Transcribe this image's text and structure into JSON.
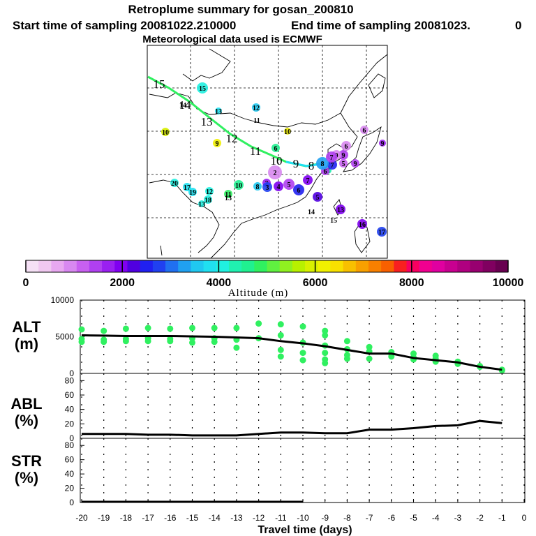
{
  "header": {
    "title": "Retroplume summary for gosan_200810",
    "start_label": "Start time of sampling 20081022.210000",
    "end_label": "End time of sampling 20081023.",
    "end_suffix": "0",
    "met_label": "Meteorological data used is ECMWF"
  },
  "chart_data": [
    {
      "type": "map",
      "title": "Retroplume trajectory map",
      "plume_track_labels": [
        "15",
        "14",
        "13",
        "12",
        "11",
        "10",
        "9",
        "8"
      ],
      "clusters": [
        {
          "label": "15",
          "alt": 4200
        },
        {
          "label": "14",
          "alt": 5000
        },
        {
          "label": "13",
          "alt": 3800
        },
        {
          "label": "12",
          "alt": 3600
        },
        {
          "label": "11",
          "alt": 4600
        },
        {
          "label": "10",
          "alt": 5800
        },
        {
          "label": "9",
          "alt": 6100
        },
        {
          "label": "10",
          "alt": 6300
        },
        {
          "label": "8",
          "alt": 4400
        },
        {
          "label": "6",
          "alt": 4500
        },
        {
          "label": "20",
          "alt": 4100
        },
        {
          "label": "17",
          "alt": 3800
        },
        {
          "label": "19",
          "alt": 3900
        },
        {
          "label": "12",
          "alt": 4200
        },
        {
          "label": "18",
          "alt": 4100
        },
        {
          "label": "13",
          "alt": 4200
        },
        {
          "label": "11",
          "alt": 4800
        },
        {
          "label": "10",
          "alt": 4600
        },
        {
          "label": "13",
          "alt": 4500
        },
        {
          "label": "8",
          "alt": 3600
        },
        {
          "label": "2",
          "alt": 1800
        },
        {
          "label": "3",
          "alt": 2700
        },
        {
          "label": "4",
          "alt": 1900
        },
        {
          "label": "5",
          "alt": 1500
        },
        {
          "label": "6",
          "alt": 2500
        },
        {
          "label": "7",
          "alt": 1900
        },
        {
          "label": "2",
          "alt": 900
        },
        {
          "label": "5",
          "alt": 2200
        },
        {
          "label": "6",
          "alt": 1400
        },
        {
          "label": "7",
          "alt": 2600
        },
        {
          "label": "8",
          "alt": 3400
        },
        {
          "label": "9",
          "alt": 1400
        },
        {
          "label": "9",
          "alt": 1000
        },
        {
          "label": "9",
          "alt": 1500
        },
        {
          "label": "7",
          "alt": 1500
        },
        {
          "label": "6",
          "alt": 800
        },
        {
          "label": "5",
          "alt": 1100
        },
        {
          "label": "6",
          "alt": 900
        },
        {
          "label": "9",
          "alt": 1800
        },
        {
          "label": "13",
          "alt": 2000
        },
        {
          "label": "14",
          "alt": 1300
        },
        {
          "label": "15",
          "alt": 3800
        },
        {
          "label": "16",
          "alt": 2000
        },
        {
          "label": "17",
          "alt": 2700
        }
      ]
    },
    {
      "type": "colorbar",
      "xlabel": "Altitude (m)",
      "range": [
        0,
        10000
      ],
      "tick_labels": [
        "0",
        "2000",
        "4000",
        "6000",
        "8000",
        "10000"
      ],
      "colors": [
        "#f5e0f5",
        "#f0c8f0",
        "#e8a8f0",
        "#d888f0",
        "#c860f0",
        "#b040f0",
        "#9a20f0",
        "#8000f0",
        "#5000e0",
        "#2020f0",
        "#2040f0",
        "#2070f0",
        "#20a0f0",
        "#20c8f0",
        "#20e0f0",
        "#20f0e0",
        "#20f0b0",
        "#20f090",
        "#30f060",
        "#60f040",
        "#90f020",
        "#b8f000",
        "#d8f000",
        "#f0f000",
        "#f8e000",
        "#f8c000",
        "#f8a000",
        "#f88000",
        "#f86000",
        "#f82020",
        "#f80060",
        "#f00090",
        "#e000a0",
        "#c80090",
        "#b00080",
        "#980070",
        "#800060",
        "#680050"
      ]
    },
    {
      "type": "scatter+line",
      "panel": "ALT",
      "ylabel": "ALT (m)",
      "ylim": [
        0,
        10000
      ],
      "yticks": [
        "10000",
        "5000",
        "0"
      ],
      "x": [
        -20,
        -19,
        -18,
        -17,
        -16,
        -15,
        -14,
        -13,
        -12,
        -11,
        -10,
        -9,
        -8,
        -7,
        -6,
        -5,
        -4,
        -3,
        -2,
        -1
      ],
      "line_values": [
        5200,
        5150,
        5100,
        5100,
        5100,
        5050,
        5000,
        4900,
        4800,
        4400,
        4100,
        3700,
        3200,
        2700,
        2700,
        2100,
        1800,
        1500,
        900,
        500
      ],
      "scatter_points": [
        [
          -20,
          6000
        ],
        [
          -20,
          4700
        ],
        [
          -20,
          4300
        ],
        [
          -19,
          5800
        ],
        [
          -19,
          4600
        ],
        [
          -19,
          4300
        ],
        [
          -18,
          6100
        ],
        [
          -18,
          4700
        ],
        [
          -18,
          4400
        ],
        [
          -17,
          6200
        ],
        [
          -17,
          4800
        ],
        [
          -17,
          4400
        ],
        [
          -16,
          6100
        ],
        [
          -16,
          4700
        ],
        [
          -16,
          4400
        ],
        [
          -15,
          6200
        ],
        [
          -15,
          4800
        ],
        [
          -15,
          4200
        ],
        [
          -14,
          6200
        ],
        [
          -14,
          4800
        ],
        [
          -14,
          4300
        ],
        [
          -13,
          6200
        ],
        [
          -13,
          4600
        ],
        [
          -13,
          3500
        ],
        [
          -12,
          6800
        ],
        [
          -12,
          4800
        ],
        [
          -11,
          6700
        ],
        [
          -11,
          5200
        ],
        [
          -11,
          3200
        ],
        [
          -11,
          2300
        ],
        [
          -10,
          6400
        ],
        [
          -10,
          4200
        ],
        [
          -10,
          2800
        ],
        [
          -10,
          1800
        ],
        [
          -9,
          5800
        ],
        [
          -9,
          5200
        ],
        [
          -9,
          3800
        ],
        [
          -9,
          2800
        ],
        [
          -9,
          1900
        ],
        [
          -9,
          1400
        ],
        [
          -8,
          4400
        ],
        [
          -8,
          3300
        ],
        [
          -8,
          2500
        ],
        [
          -8,
          2000
        ],
        [
          -7,
          3600
        ],
        [
          -7,
          3000
        ],
        [
          -7,
          2000
        ],
        [
          -6,
          2900
        ],
        [
          -6,
          2700
        ],
        [
          -6,
          2300
        ],
        [
          -5,
          2700
        ],
        [
          -5,
          2200
        ],
        [
          -5,
          1900
        ],
        [
          -4,
          2400
        ],
        [
          -4,
          2000
        ],
        [
          -4,
          1600
        ],
        [
          -3,
          1600
        ],
        [
          -3,
          1300
        ],
        [
          -2,
          1000
        ],
        [
          -2,
          900
        ],
        [
          -1,
          500
        ],
        [
          -1,
          400
        ]
      ]
    },
    {
      "type": "line",
      "panel": "ABL",
      "ylabel": "ABL (%)",
      "ylim": [
        0,
        90
      ],
      "yticks": [
        "80",
        "60",
        "40",
        "20",
        "0"
      ],
      "x": [
        -20,
        -19,
        -18,
        -17,
        -16,
        -15,
        -14,
        -13,
        -12,
        -11,
        -10,
        -9,
        -8,
        -7,
        -6,
        -5,
        -4,
        -3,
        -2,
        -1
      ],
      "values": [
        6,
        6,
        6,
        5,
        5,
        4,
        4,
        4,
        6,
        8,
        8,
        7,
        7,
        12,
        12,
        14,
        17,
        18,
        24,
        21
      ]
    },
    {
      "type": "line",
      "panel": "STR",
      "ylabel": "STR (%)",
      "ylim": [
        0,
        90
      ],
      "yticks": [
        "80",
        "60",
        "40",
        "20",
        "0"
      ],
      "x": [
        -20,
        -19,
        -18,
        -17,
        -16,
        -15,
        -14,
        -13,
        -12,
        -11,
        -10
      ],
      "values": [
        1,
        1,
        1,
        1,
        1,
        1,
        1,
        1,
        1,
        1,
        1
      ],
      "xlabel": "Travel time (days)",
      "xticks": [
        "-20",
        "-19",
        "-18",
        "-17",
        "-16",
        "-15",
        "-14",
        "-13",
        "-12",
        "-11",
        "-10",
        "-9",
        "-8",
        "-7",
        "-6",
        "-5",
        "-4",
        "-3",
        "-2",
        "-1",
        "0"
      ]
    }
  ],
  "panel_labels": {
    "alt_line1": "ALT",
    "alt_line2": "(m)",
    "abl_line1": "ABL",
    "abl_line2": "(%)",
    "str_line1": "STR",
    "str_line2": "(%)"
  }
}
